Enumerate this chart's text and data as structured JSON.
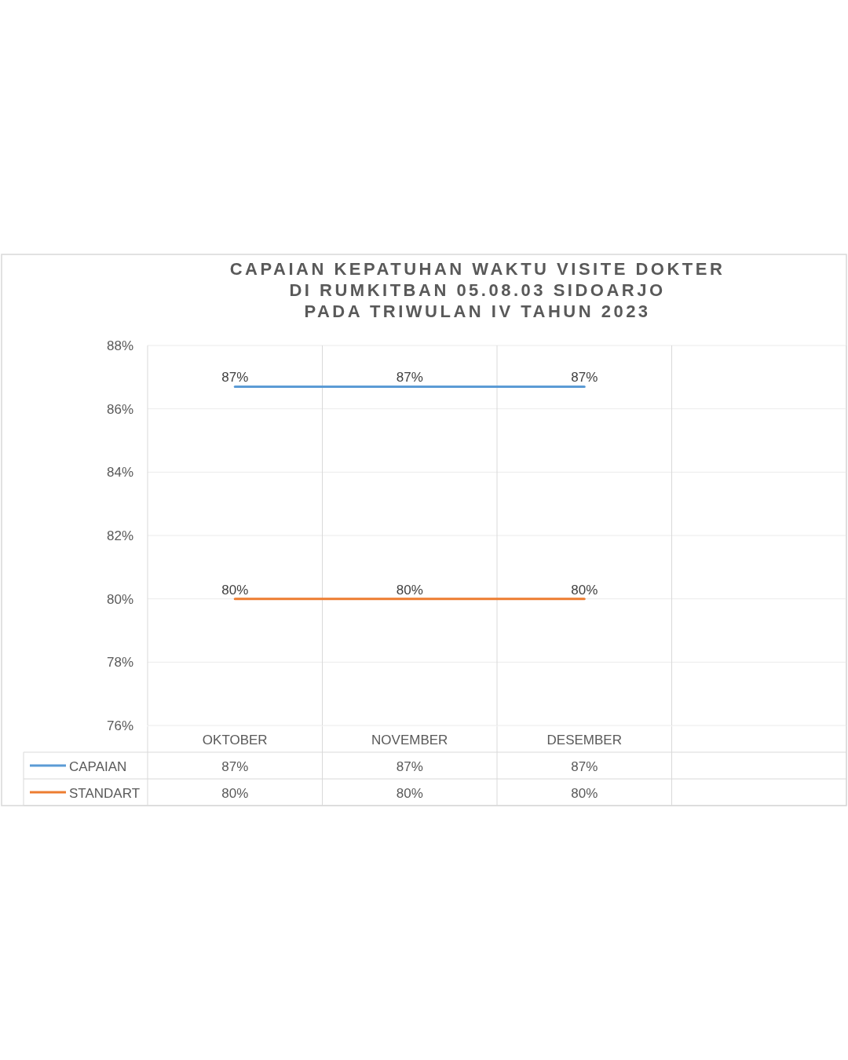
{
  "chart_data": {
    "type": "line",
    "title": "CAPAIAN KEPATUHAN WAKTU VISITE DOKTER\nDI RUMKITBAN 05.08.03 SIDOARJO\nPADA TRIWULAN IV TAHUN 2023",
    "categories": [
      "OKTOBER",
      "NOVEMBER",
      "DESEMBER",
      null
    ],
    "series": [
      {
        "name": "CAPAIAN",
        "color": "#5b9bd5",
        "values": [
          86.7,
          86.7,
          86.7,
          null
        ],
        "value_labels": [
          "87%",
          "87%",
          "87%",
          null
        ]
      },
      {
        "name": "STANDART",
        "color": "#ed7d31",
        "values": [
          80,
          80,
          80,
          null
        ],
        "value_labels": [
          "80%",
          "80%",
          "80%",
          null
        ]
      }
    ],
    "ylim": [
      76,
      88
    ],
    "yticks": [
      {
        "value": 76,
        "label": "76%"
      },
      {
        "value": 78,
        "label": "78%"
      },
      {
        "value": 80,
        "label": "80%"
      },
      {
        "value": 82,
        "label": "82%"
      },
      {
        "value": 84,
        "label": "84%"
      },
      {
        "value": 86,
        "label": "86%"
      },
      {
        "value": 88,
        "label": "88%"
      }
    ],
    "grid": "y",
    "legend": "bottom",
    "line_style": "solid"
  }
}
